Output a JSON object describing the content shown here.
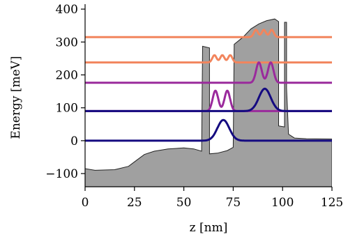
{
  "chart_data": {
    "type": "line",
    "title": "",
    "xlabel": "z [nm]",
    "ylabel": "Energy [meV]",
    "xlim": [
      0,
      125
    ],
    "ylim": [
      -140,
      415
    ],
    "xticks": [
      0,
      25,
      50,
      75,
      100,
      125
    ],
    "yticks": [
      -100,
      0,
      100,
      200,
      300,
      400
    ],
    "xtick_labels": [
      "0",
      "25",
      "50",
      "75",
      "100",
      "125"
    ],
    "ytick_labels": [
      "−100",
      "0",
      "100",
      "200",
      "300",
      "400"
    ],
    "grid": false,
    "legend": "none",
    "potential": {
      "fill_color": "#a0a0a0",
      "edge_color": "#222222",
      "points": [
        [
          0,
          -85
        ],
        [
          5,
          -90
        ],
        [
          15,
          -88
        ],
        [
          22,
          -78
        ],
        [
          26,
          -60
        ],
        [
          30,
          -42
        ],
        [
          35,
          -32
        ],
        [
          42,
          -25
        ],
        [
          50,
          -22
        ],
        [
          55,
          -25
        ],
        [
          59,
          -32
        ],
        [
          59.5,
          287
        ],
        [
          63,
          282
        ],
        [
          63,
          -40
        ],
        [
          67,
          -38
        ],
        [
          72,
          -30
        ],
        [
          75,
          -20
        ],
        [
          75.5,
          293
        ],
        [
          80,
          315
        ],
        [
          84,
          340
        ],
        [
          88,
          355
        ],
        [
          92,
          365
        ],
        [
          96,
          370
        ],
        [
          98,
          362
        ],
        [
          98,
          45
        ],
        [
          101,
          42
        ],
        [
          101,
          360
        ],
        [
          102,
          360
        ],
        [
          102,
          160
        ],
        [
          103,
          20
        ],
        [
          106,
          8
        ],
        [
          112,
          6
        ],
        [
          125,
          5
        ]
      ]
    },
    "levels": [
      {
        "energy": 315,
        "color": "#f2855d",
        "x_range": [
          0,
          125
        ],
        "peaks": [
          [
            86.5,
            3,
            22
          ],
          [
            90.5,
            3,
            22
          ],
          [
            94.5,
            3,
            22
          ]
        ]
      },
      {
        "energy": 238,
        "color": "#f2855d",
        "x_range": [
          0,
          125
        ],
        "peaks": [
          [
            65.5,
            3,
            22
          ],
          [
            69.5,
            3,
            22
          ],
          [
            73.5,
            3,
            22
          ]
        ]
      },
      {
        "energy": 176,
        "color": "#9a2a9c",
        "x_range": [
          0,
          125
        ],
        "peaks": [
          [
            88,
            4,
            62
          ],
          [
            94,
            4,
            62
          ]
        ]
      },
      {
        "energy": 90,
        "color": "#9a2a9c",
        "x_range": [
          0,
          125
        ],
        "peaks": [
          [
            66,
            4,
            62
          ],
          [
            72,
            4,
            62
          ]
        ]
      },
      {
        "energy": 0,
        "color": "#140a80",
        "x_range": [
          0,
          125
        ],
        "peaks": [
          [
            70,
            8.5,
            63
          ]
        ]
      },
      {
        "energy": 90,
        "color": "#140a80",
        "x_range": [
          0,
          125
        ],
        "peaks": [
          [
            91,
            8.5,
            68
          ]
        ]
      }
    ]
  }
}
